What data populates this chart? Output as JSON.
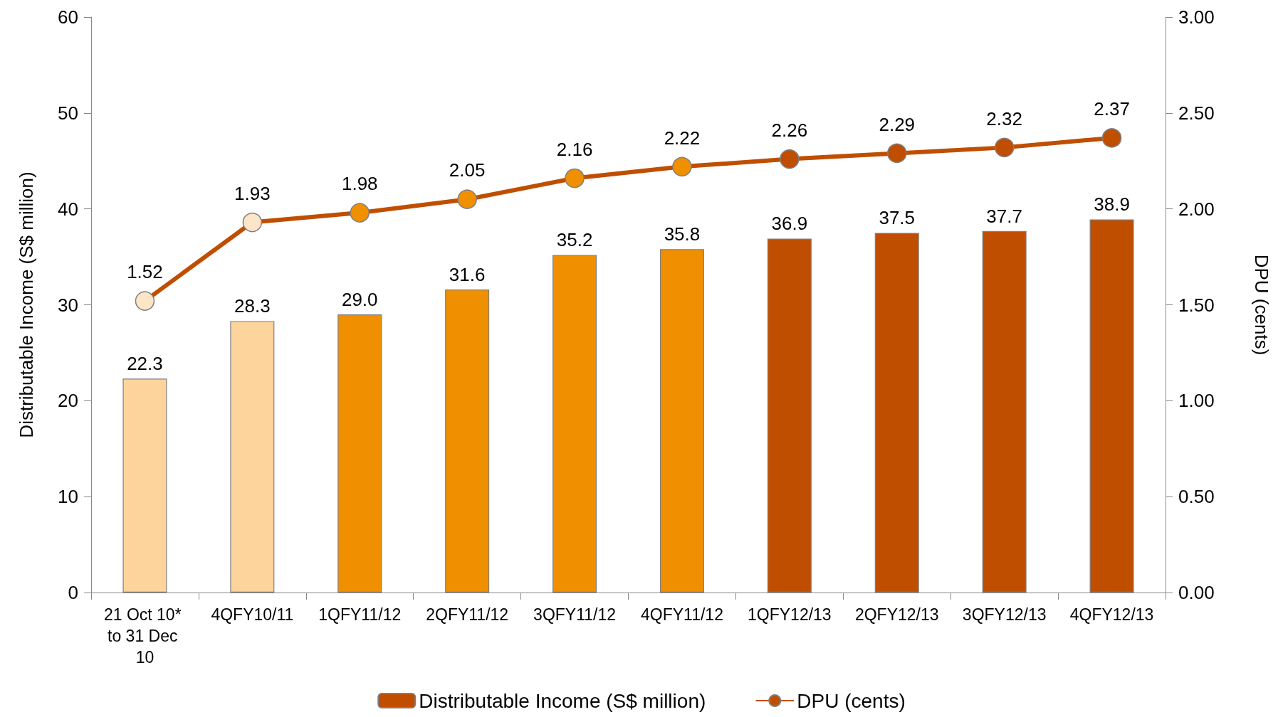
{
  "chart_data": {
    "type": "bar",
    "categories": [
      "21 Oct 10* to 31 Dec 10",
      "4QFY10/11",
      "1QFY11/12",
      "2QFY11/12",
      "3QFY11/12",
      "4QFY11/12",
      "1QFY12/13",
      "2QFY12/13",
      "3QFY12/13",
      "4QFY12/13"
    ],
    "series": [
      {
        "name": "Distributable Income (S$ million)",
        "color": "#c04e00",
        "colors": [
          "#fdd49b",
          "#fdd49b",
          "#f09000",
          "#f09000",
          "#f09000",
          "#f09000",
          "#c04e00",
          "#c04e00",
          "#c04e00",
          "#c04e00"
        ],
        "values": [
          22.3,
          28.3,
          29.0,
          31.6,
          35.2,
          35.8,
          36.9,
          37.5,
          37.7,
          38.9
        ],
        "value_labels": [
          "22.3",
          "28.3",
          "29.0",
          "31.6",
          "35.2",
          "35.8",
          "36.9",
          "37.5",
          "37.7",
          "38.9"
        ]
      },
      {
        "name": "DPU (cents)",
        "type": "line",
        "axis": "y2",
        "color": "#c04e00",
        "colors": [
          "#fde5c8",
          "#fde5c8",
          "#f09000",
          "#f09000",
          "#f09000",
          "#f09000",
          "#c04e00",
          "#c04e00",
          "#c04e00",
          "#c04e00"
        ],
        "values": [
          1.52,
          1.93,
          1.98,
          2.05,
          2.16,
          2.22,
          2.26,
          2.29,
          2.32,
          2.37
        ],
        "value_labels": [
          "1.52",
          "1.93",
          "1.98",
          "2.05",
          "2.16",
          "2.22",
          "2.26",
          "2.29",
          "2.32",
          "2.37"
        ]
      }
    ],
    "ylabel": "Distributable Income (S$ million)",
    "y2label": "DPU (cents)",
    "ylim": [
      0,
      60
    ],
    "yticks": [
      0,
      10,
      20,
      30,
      40,
      50,
      60
    ],
    "y2lim": [
      0,
      3
    ],
    "y2ticks": [
      {
        "value": 0,
        "label": "0.00"
      },
      {
        "value": 0.5,
        "label": "0.50"
      },
      {
        "value": 1,
        "label": "1.00"
      },
      {
        "value": 1.5,
        "label": "1.50"
      },
      {
        "value": 2,
        "label": "2.00"
      },
      {
        "value": 2.5,
        "label": "2.50"
      },
      {
        "value": 3,
        "label": "3.00"
      }
    ],
    "marker": "circle",
    "line_style": "solid",
    "grid": false,
    "legend": "bottom"
  }
}
